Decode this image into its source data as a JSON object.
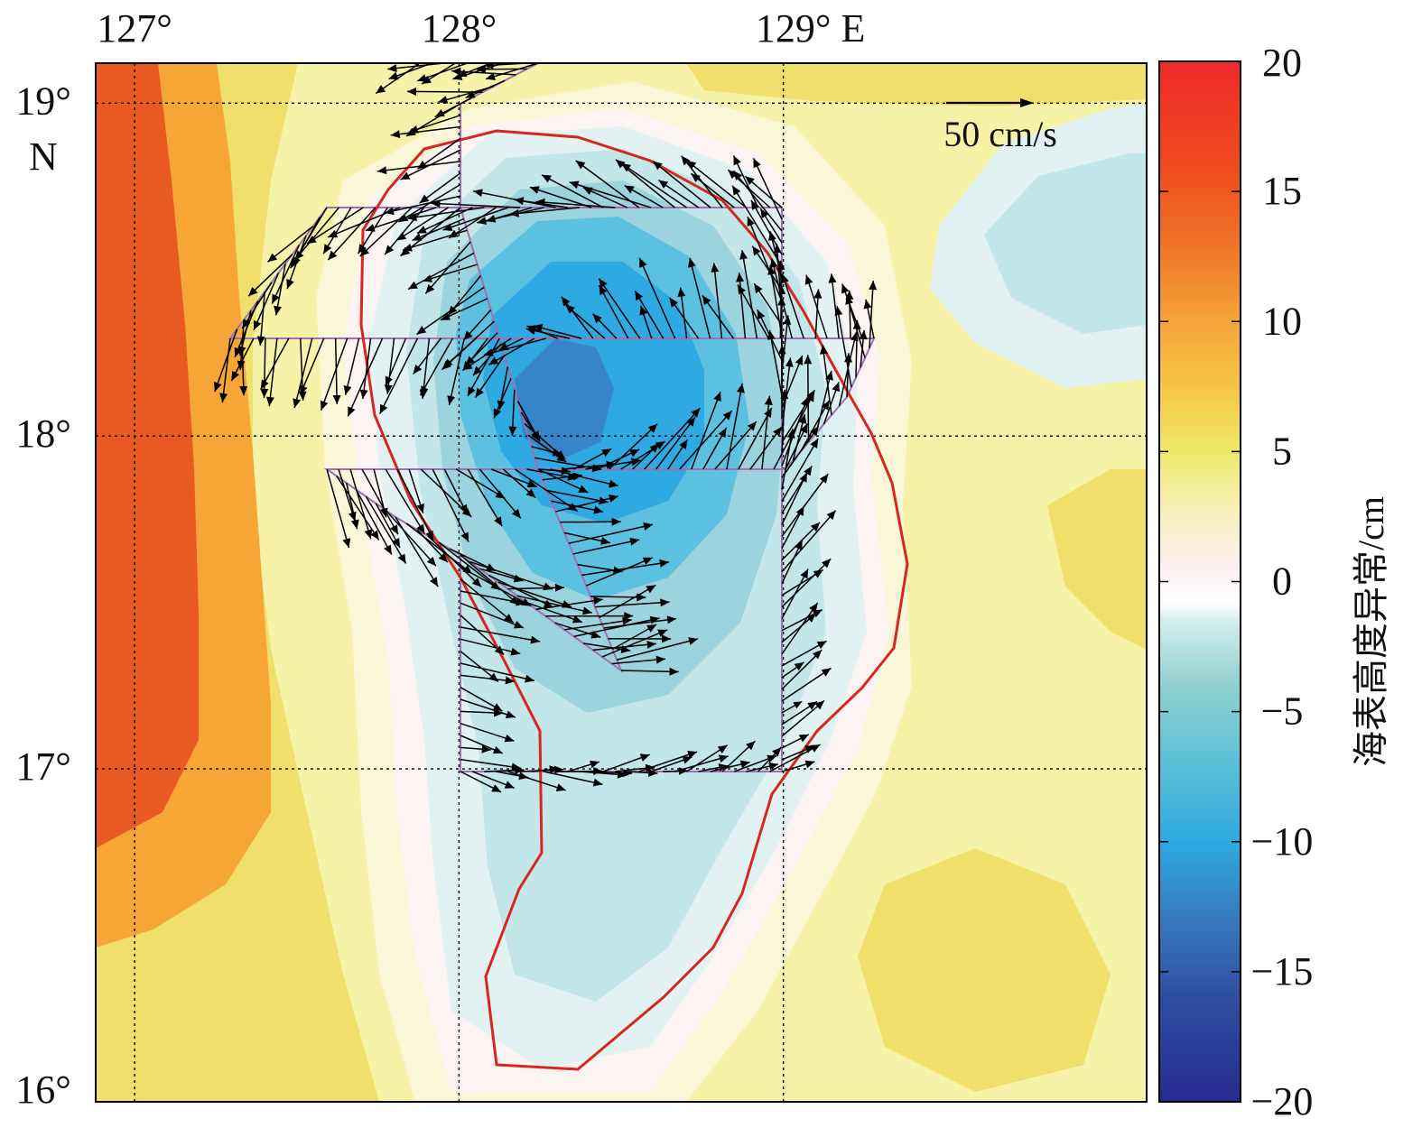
{
  "map": {
    "x_ticks": [
      {
        "value": 127,
        "label": "127°"
      },
      {
        "value": 128,
        "label": "128°"
      },
      {
        "value": 129,
        "label": "129° E"
      }
    ],
    "y_ticks": [
      {
        "value": 19,
        "label": "19°"
      },
      {
        "value": 18,
        "label": "18°"
      },
      {
        "value": 17,
        "label": "17°"
      },
      {
        "value": 16,
        "label": "16°"
      }
    ],
    "y_unit_label": "N",
    "lon_range": [
      126.88,
      130.12
    ],
    "lat_range": [
      16.0,
      19.12
    ],
    "grid": "dotted",
    "field_colors": {
      "outer_west": "#e85a22",
      "west_mid": "#f5a637",
      "warm_band": "#f0df6a",
      "pale_yellow": "#f6f2a7",
      "cream": "#faf6d8",
      "near_zero": "#fbf4f3",
      "eddy_edge": "#e2f2f3",
      "eddy_light": "#c3e6e9",
      "eddy_mid": "#9bd4df",
      "eddy_inner": "#5cc0e0",
      "eddy_core": "#2ea9e1",
      "eddy_deep": "#3784c8"
    },
    "eddy_contour_color": "#d8261f",
    "track_color": "#a36fb1"
  },
  "reference_vector": {
    "label": "50 cm/s",
    "speed_cm_s": 50
  },
  "colorbar": {
    "title": "海表高度异常/cm",
    "min": -20,
    "max": 20,
    "ticks": [
      {
        "value": 20,
        "label": "20"
      },
      {
        "value": 15,
        "label": "15"
      },
      {
        "value": 10,
        "label": "10"
      },
      {
        "value": 5,
        "label": "5"
      },
      {
        "value": 0,
        "label": "0"
      },
      {
        "value": -5,
        "label": "−5"
      },
      {
        "value": -10,
        "label": "−10"
      },
      {
        "value": -15,
        "label": "−15"
      },
      {
        "value": -20,
        "label": "−20"
      }
    ],
    "stops": [
      {
        "value": -20,
        "color": "#262b8f"
      },
      {
        "value": -16,
        "color": "#2e4ea2"
      },
      {
        "value": -13,
        "color": "#3779bf"
      },
      {
        "value": -10,
        "color": "#2ea9e1"
      },
      {
        "value": -7,
        "color": "#5bc0d6"
      },
      {
        "value": -4,
        "color": "#8fd0cf"
      },
      {
        "value": -1.5,
        "color": "#d4eeed"
      },
      {
        "value": -0.8,
        "color": "#ffffff"
      },
      {
        "value": 0.5,
        "color": "#fbeff2"
      },
      {
        "value": 2.5,
        "color": "#f7f1c2"
      },
      {
        "value": 5,
        "color": "#eee96a"
      },
      {
        "value": 7.5,
        "color": "#f6c545"
      },
      {
        "value": 10,
        "color": "#f5a43a"
      },
      {
        "value": 13,
        "color": "#ef7327"
      },
      {
        "value": 16,
        "color": "#f04a1e"
      },
      {
        "value": 20,
        "color": "#ee2a2a"
      }
    ]
  }
}
